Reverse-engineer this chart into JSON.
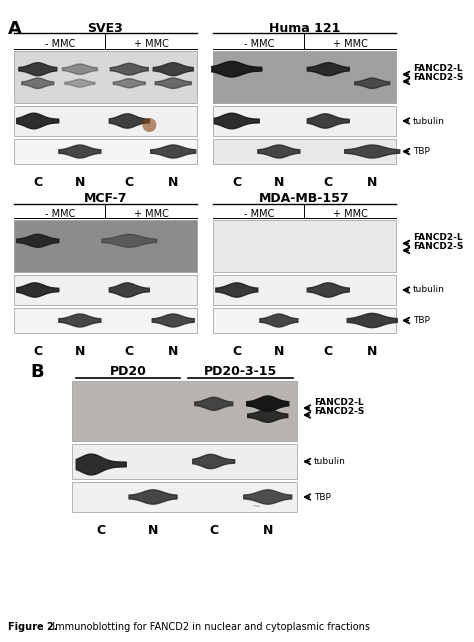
{
  "fig_width": 4.74,
  "fig_height": 6.42,
  "dpi": 100,
  "background": "#ffffff",
  "caption_bold": "Figure 2.",
  "caption_rest": "  Immunoblotting for FANCD2 in nuclear and cytoplasmic fractions",
  "panel_A_label": "A",
  "panel_B_label": "B",
  "top_left_title": "SVE3",
  "top_right_title": "Huma 121",
  "mid_left_title": "MCF-7",
  "mid_right_title": "MDA-MB-157",
  "bottom_title_left": "PD20",
  "bottom_title_right": "PD20-3-15",
  "mmc_minus": "- MMC",
  "mmc_plus": "+ MMC",
  "lane_labels": [
    "C",
    "N",
    "C",
    "N"
  ],
  "marker_tubulin": "tubulin",
  "marker_TBP": "TBP"
}
